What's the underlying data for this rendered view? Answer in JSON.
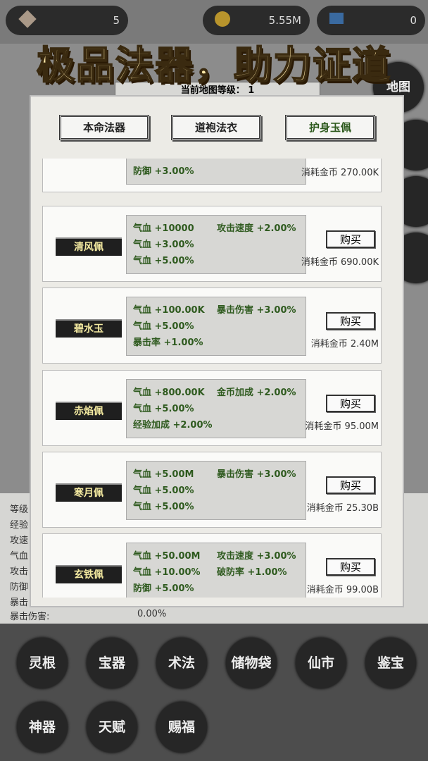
{
  "top_bar": {
    "resources": [
      "5",
      "5.55M",
      "0"
    ]
  },
  "banner": "极品法器，助力证道",
  "background": {
    "map_level": "当前地图等级： 1",
    "map_button": "地图",
    "stat_labels": [
      "等级",
      "经验",
      "攻速",
      "气血",
      "攻击",
      "防御",
      "暴击"
    ],
    "crit_damage_label": "暴击伤害:",
    "crit_damage_value": "0.00%"
  },
  "tabs": [
    "本命法器",
    "道袍法衣",
    "护身玉佩"
  ],
  "items": [
    {
      "name": null,
      "left": [
        "防御 +3.00%"
      ],
      "right": [],
      "button": null,
      "cost": "消耗金币 270.00K"
    },
    {
      "name": "清风佩",
      "left": [
        "气血 +10000",
        "气血 +3.00%",
        "气血 +5.00%"
      ],
      "right": [
        "攻击速度 +2.00%"
      ],
      "button": "购买",
      "cost": "消耗金币 690.00K"
    },
    {
      "name": "碧水玉",
      "left": [
        "气血 +100.00K",
        "气血 +5.00%",
        "暴击率 +1.00%"
      ],
      "right": [
        "暴击伤害 +3.00%"
      ],
      "button": "购买",
      "cost": "消耗金币 2.40M"
    },
    {
      "name": "赤焰佩",
      "left": [
        "气血 +800.00K",
        "气血 +5.00%",
        "经验加成 +2.00%"
      ],
      "right": [
        "金币加成 +2.00%"
      ],
      "button": "购买",
      "cost": "消耗金币 95.00M"
    },
    {
      "name": "寒月佩",
      "left": [
        "气血 +5.00M",
        "气血 +5.00%",
        "气血 +5.00%"
      ],
      "right": [
        "暴击伤害 +3.00%"
      ],
      "button": "购买",
      "cost": "消耗金币 25.30B"
    },
    {
      "name": "玄铁佩",
      "left": [
        "气血 +50.00M",
        "气血 +10.00%",
        "防御 +5.00%"
      ],
      "right": [
        "攻击速度 +3.00%",
        "破防率 +1.00%"
      ],
      "button": "购买",
      "cost": "消耗金币 99.00B"
    }
  ],
  "bottom_menu": [
    "灵根",
    "宝器",
    "术法",
    "储物袋",
    "仙市",
    "鉴宝",
    "神器",
    "天赋",
    "赐福"
  ]
}
